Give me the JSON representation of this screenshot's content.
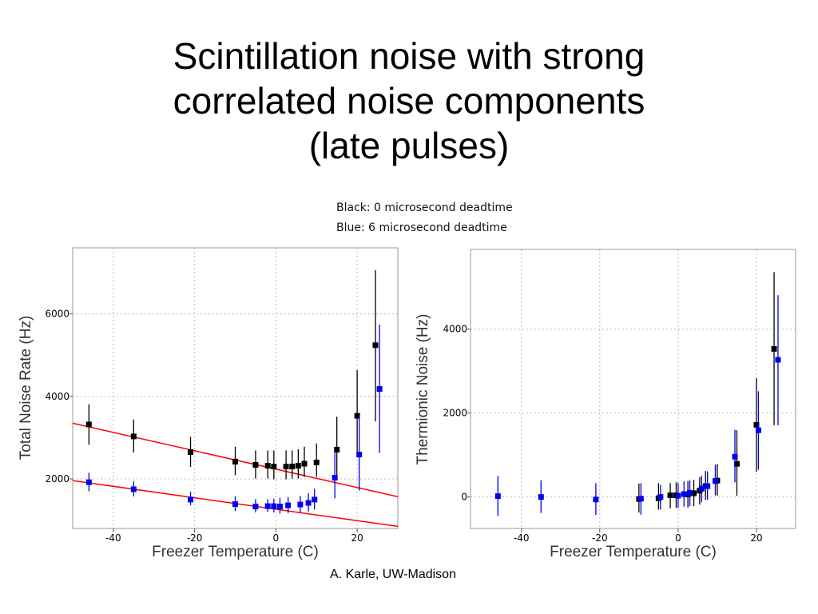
{
  "slide": {
    "title_lines": [
      "Scintillation noise with strong",
      "correlated noise components",
      "(late pulses)"
    ],
    "legend_black": "Black: 0 microsecond deadtime",
    "legend_blue": "Blue: 6 microsecond deadtime",
    "credit": "A. Karle, UW-Madison"
  },
  "colors": {
    "black_series": "#000000",
    "blue_series": "#0000ee",
    "fit_line": "#ff0000",
    "grid": "#bbbbbb"
  },
  "chart_data": [
    {
      "type": "scatter",
      "xlabel": "Freezer Temperature (C)",
      "ylabel": "Total Noise Rate (Hz)",
      "xlim": [
        -50,
        30
      ],
      "ylim": [
        800,
        7600
      ],
      "xticks": [
        "-40",
        "-20",
        "0",
        "20"
      ],
      "yticks": [
        "2000",
        "4000",
        "6000"
      ],
      "grid": true,
      "series": [
        {
          "color": "black",
          "points": [
            {
              "x": -46,
              "y": 3320,
              "lo": 2830,
              "hi": 3810
            },
            {
              "x": -35,
              "y": 3030,
              "lo": 2640,
              "hi": 3440
            },
            {
              "x": -21,
              "y": 2650,
              "lo": 2290,
              "hi": 3020
            },
            {
              "x": -10,
              "y": 2420,
              "lo": 2090,
              "hi": 2780
            },
            {
              "x": -5,
              "y": 2340,
              "lo": 2010,
              "hi": 2690
            },
            {
              "x": -2,
              "y": 2320,
              "lo": 2010,
              "hi": 2690
            },
            {
              "x": -0.5,
              "y": 2300,
              "lo": 1990,
              "hi": 2690
            },
            {
              "x": 2.5,
              "y": 2300,
              "lo": 1990,
              "hi": 2690
            },
            {
              "x": 4,
              "y": 2300,
              "lo": 2010,
              "hi": 2690
            },
            {
              "x": 5.5,
              "y": 2320,
              "lo": 2010,
              "hi": 2720
            },
            {
              "x": 7,
              "y": 2370,
              "lo": 2050,
              "hi": 2780
            },
            {
              "x": 10,
              "y": 2400,
              "lo": 2050,
              "hi": 2860
            },
            {
              "x": 15,
              "y": 2710,
              "lo": 2050,
              "hi": 3510
            },
            {
              "x": 20,
              "y": 3530,
              "lo": 2590,
              "hi": 4640
            },
            {
              "x": 24.5,
              "y": 5240,
              "lo": 3390,
              "hi": 7060
            }
          ]
        },
        {
          "color": "blue",
          "points": [
            {
              "x": -46,
              "y": 1920,
              "lo": 1700,
              "hi": 2150
            },
            {
              "x": -35,
              "y": 1750,
              "lo": 1580,
              "hi": 1940
            },
            {
              "x": -21,
              "y": 1500,
              "lo": 1360,
              "hi": 1690
            },
            {
              "x": -10,
              "y": 1390,
              "lo": 1220,
              "hi": 1580
            },
            {
              "x": -5,
              "y": 1330,
              "lo": 1190,
              "hi": 1510
            },
            {
              "x": -2,
              "y": 1340,
              "lo": 1200,
              "hi": 1510
            },
            {
              "x": -0.5,
              "y": 1340,
              "lo": 1190,
              "hi": 1520
            },
            {
              "x": 1,
              "y": 1330,
              "lo": 1160,
              "hi": 1540
            },
            {
              "x": 3,
              "y": 1360,
              "lo": 1170,
              "hi": 1560
            },
            {
              "x": 6,
              "y": 1380,
              "lo": 1180,
              "hi": 1590
            },
            {
              "x": 8,
              "y": 1420,
              "lo": 1210,
              "hi": 1650
            },
            {
              "x": 9.5,
              "y": 1500,
              "lo": 1260,
              "hi": 1760
            },
            {
              "x": 14.5,
              "y": 2030,
              "lo": 1530,
              "hi": 2660
            },
            {
              "x": 20.5,
              "y": 2590,
              "lo": 1720,
              "hi": 3520
            },
            {
              "x": 25.5,
              "y": 4180,
              "lo": 2630,
              "hi": 5740
            }
          ]
        }
      ],
      "fit_lines": [
        {
          "color": "red",
          "x": [
            -50,
            30
          ],
          "y": [
            3350,
            1570
          ]
        },
        {
          "color": "red",
          "x": [
            -50,
            30
          ],
          "y": [
            1960,
            850
          ]
        }
      ]
    },
    {
      "type": "scatter",
      "xlabel": "Freezer Temperature (C)",
      "ylabel": "Thermionic Noise (Hz)",
      "xlim": [
        -53,
        30
      ],
      "ylim": [
        -750,
        5900
      ],
      "xticks": [
        "-40",
        "-20",
        "0",
        "20"
      ],
      "yticks": [
        "0",
        "2000",
        "4000"
      ],
      "grid": true,
      "series": [
        {
          "color": "black",
          "points": [
            {
              "x": -10,
              "y": -50,
              "lo": -370,
              "hi": 320
            },
            {
              "x": -5,
              "y": -30,
              "lo": -300,
              "hi": 330
            },
            {
              "x": -2,
              "y": 40,
              "lo": -270,
              "hi": 330
            },
            {
              "x": -0.5,
              "y": 40,
              "lo": -260,
              "hi": 350
            },
            {
              "x": 2.5,
              "y": 60,
              "lo": -250,
              "hi": 380
            },
            {
              "x": 4,
              "y": 90,
              "lo": -220,
              "hi": 410
            },
            {
              "x": 5.5,
              "y": 150,
              "lo": -180,
              "hi": 470
            },
            {
              "x": 7,
              "y": 260,
              "lo": -70,
              "hi": 620
            },
            {
              "x": 10,
              "y": 390,
              "lo": 30,
              "hi": 790
            },
            {
              "x": 15,
              "y": 790,
              "lo": 30,
              "hi": 1590
            },
            {
              "x": 20,
              "y": 1720,
              "lo": 600,
              "hi": 2830
            },
            {
              "x": 24.5,
              "y": 3530,
              "lo": 1710,
              "hi": 5360
            }
          ]
        },
        {
          "color": "blue",
          "points": [
            {
              "x": -46,
              "y": 20,
              "lo": -450,
              "hi": 500
            },
            {
              "x": -35,
              "y": 0,
              "lo": -380,
              "hi": 400
            },
            {
              "x": -21,
              "y": -60,
              "lo": -430,
              "hi": 330
            },
            {
              "x": -9.5,
              "y": -40,
              "lo": -420,
              "hi": 330
            },
            {
              "x": -4.5,
              "y": 0,
              "lo": -300,
              "hi": 290
            },
            {
              "x": 0,
              "y": 30,
              "lo": -260,
              "hi": 330
            },
            {
              "x": 1.5,
              "y": 70,
              "lo": -230,
              "hi": 370
            },
            {
              "x": 3,
              "y": 100,
              "lo": -220,
              "hi": 400
            },
            {
              "x": 6,
              "y": 200,
              "lo": -130,
              "hi": 510
            },
            {
              "x": 7.5,
              "y": 260,
              "lo": -70,
              "hi": 610
            },
            {
              "x": 9.5,
              "y": 380,
              "lo": 40,
              "hi": 770
            },
            {
              "x": 14.5,
              "y": 960,
              "lo": 350,
              "hi": 1600
            },
            {
              "x": 20.5,
              "y": 1590,
              "lo": 650,
              "hi": 2520
            },
            {
              "x": 25.5,
              "y": 3270,
              "lo": 1710,
              "hi": 4810
            }
          ]
        }
      ]
    }
  ]
}
